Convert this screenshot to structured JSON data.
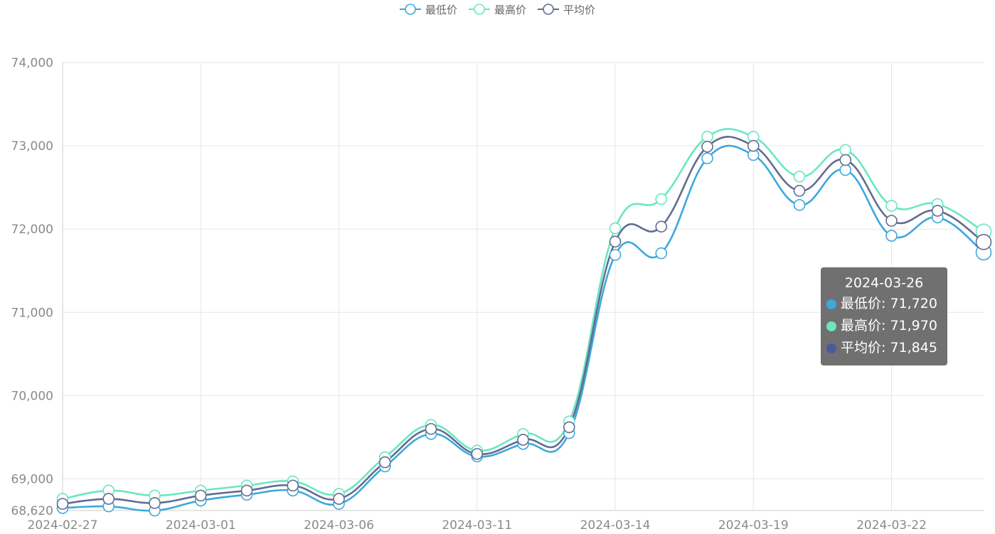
{
  "legend": [
    {
      "label": "最低价",
      "color": "#3fa7dc"
    },
    {
      "label": "最高价",
      "color": "#6be6c1"
    },
    {
      "label": "平均价",
      "color": "#626c91"
    }
  ],
  "tooltip": {
    "date": "2024-03-26",
    "rows": [
      {
        "label": "最低价",
        "value": "71,720",
        "dot_color": "#3fa7dc"
      },
      {
        "label": "最高价",
        "value": "71,970",
        "dot_color": "#6be6c1"
      },
      {
        "label": "平均价",
        "value": "71,845",
        "dot_color": "#4b5a9b"
      }
    ]
  },
  "chart_data": {
    "type": "line",
    "smooth": true,
    "grid": true,
    "legend_position": "top-center",
    "x": [
      "2024-02-27",
      "2024-02-28",
      "2024-02-29",
      "2024-03-01",
      "2024-03-04",
      "2024-03-05",
      "2024-03-06",
      "2024-03-07",
      "2024-03-08",
      "2024-03-11",
      "2024-03-12",
      "2024-03-13",
      "2024-03-14",
      "2024-03-15",
      "2024-03-18",
      "2024-03-19",
      "2024-03-20",
      "2024-03-21",
      "2024-03-22",
      "2024-03-25",
      "2024-03-26"
    ],
    "x_tick_labels": [
      "2024-02-27",
      "2024-03-01",
      "2024-03-06",
      "2024-03-11",
      "2024-03-14",
      "2024-03-19",
      "2024-03-22"
    ],
    "x_tick_indices": [
      0,
      3,
      6,
      9,
      12,
      15,
      18
    ],
    "y_ticks": [
      68620,
      69000,
      70000,
      71000,
      72000,
      73000,
      74000
    ],
    "y_tick_labels": [
      "68,620",
      "69,000",
      "70,000",
      "71,000",
      "72,000",
      "73,000",
      "74,000"
    ],
    "ylim": [
      68620,
      74000
    ],
    "series": [
      {
        "name": "最低价",
        "color": "#3fa7dc",
        "values": [
          68650,
          68670,
          68620,
          68740,
          68810,
          68860,
          68700,
          69150,
          69540,
          69270,
          69420,
          69550,
          71690,
          71710,
          72850,
          72890,
          72290,
          72710,
          71920,
          72140,
          71720
        ]
      },
      {
        "name": "最高价",
        "color": "#6be6c1",
        "values": [
          68760,
          68860,
          68800,
          68860,
          68920,
          68970,
          68820,
          69260,
          69650,
          69340,
          69540,
          69690,
          72010,
          72360,
          73110,
          73110,
          72630,
          72950,
          72280,
          72300,
          71970
        ]
      },
      {
        "name": "平均价",
        "color": "#626c91",
        "values": [
          68700,
          68760,
          68710,
          68800,
          68860,
          68920,
          68760,
          69200,
          69600,
          69300,
          69470,
          69620,
          71850,
          72030,
          72990,
          73000,
          72460,
          72830,
          72100,
          72220,
          71845
        ]
      }
    ],
    "highlight_index": 20
  }
}
